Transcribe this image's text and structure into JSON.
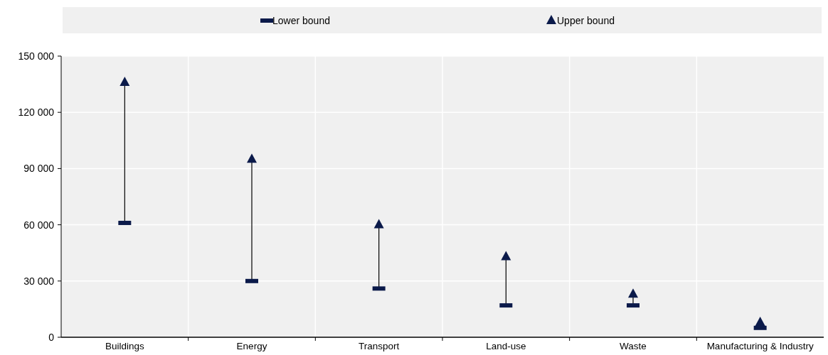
{
  "chart_data": {
    "type": "scatter",
    "categories": [
      "Buildings",
      "Energy",
      "Transport",
      "Land-use",
      "Waste",
      "Manufacturing & Industry"
    ],
    "series": [
      {
        "name": "Lower bound",
        "color": "#0b1a4a",
        "marker": "square",
        "values": [
          61000,
          30000,
          26000,
          17000,
          17000,
          5000
        ]
      },
      {
        "name": "Upper bound",
        "color": "#0b1a4a",
        "marker": "triangle",
        "values": [
          136000,
          95000,
          60000,
          43000,
          23000,
          8000
        ]
      }
    ],
    "ylim": [
      0,
      150000
    ],
    "yticks": [
      {
        "value": 0,
        "label": "0"
      },
      {
        "value": 30000,
        "label": "30 000"
      },
      {
        "value": 60000,
        "label": "60 000"
      },
      {
        "value": 90000,
        "label": "90 000"
      },
      {
        "value": 120000,
        "label": "120 000"
      },
      {
        "value": 150000,
        "label": "150 000"
      }
    ],
    "grid": true,
    "legend": "top"
  }
}
